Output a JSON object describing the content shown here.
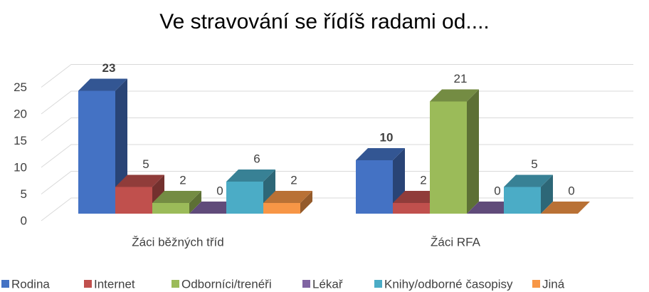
{
  "chart_data": {
    "type": "bar3d",
    "title": "Ve stravování se řídíš radami od....",
    "categories": [
      "Žáci běžných tříd",
      "Žáci RFA"
    ],
    "series": [
      {
        "name": "Rodina",
        "color": "#4472c4",
        "values": [
          23,
          10
        ]
      },
      {
        "name": "Internet",
        "color": "#c0504d",
        "values": [
          5,
          2
        ]
      },
      {
        "name": "Odborníci/trenéři",
        "color": "#9bbb59",
        "values": [
          2,
          21
        ]
      },
      {
        "name": "Lékař",
        "color": "#8064a2",
        "values": [
          0,
          0
        ]
      },
      {
        "name": "Knihy/odborné časopisy",
        "color": "#4bacc6",
        "values": [
          6,
          5
        ]
      },
      {
        "name": "Jiná",
        "color": "#f79646",
        "values": [
          2,
          0
        ]
      }
    ],
    "ylim": [
      0,
      25
    ],
    "yticks": [
      0,
      5,
      10,
      15,
      20,
      25
    ],
    "grid": true,
    "legend": "bottom"
  }
}
